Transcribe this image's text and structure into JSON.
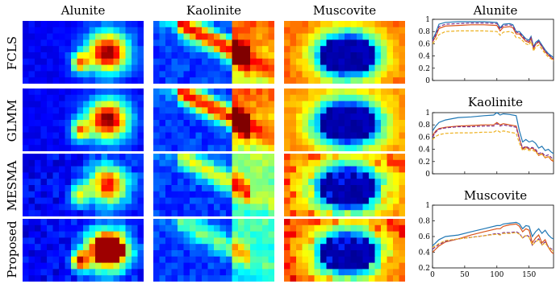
{
  "column_titles": [
    "Alunite",
    "Kaolinite",
    "Muscovite"
  ],
  "row_labels": [
    "FCLS",
    "GLMM",
    "MESMA",
    "Proposed"
  ],
  "colormap": "jet",
  "colors": {
    "blue_series": "#1f77b4",
    "red_series": "#d95319",
    "yellow_series": "#edb120",
    "purple_series": "#7e2f8e"
  },
  "chart_data": [
    {
      "type": "line",
      "title": "Alunite",
      "xlim": [
        0,
        188
      ],
      "ylim": [
        0,
        1
      ],
      "xticks": [
        0,
        50,
        100,
        150
      ],
      "yticks": [
        0,
        0.2,
        0.4,
        0.6,
        0.8,
        1
      ],
      "xtick_labels_visible": false,
      "x": [
        0,
        5,
        10,
        20,
        40,
        60,
        80,
        100,
        105,
        110,
        120,
        125,
        130,
        135,
        140,
        145,
        150,
        153,
        157,
        160,
        165,
        170,
        175,
        180,
        185,
        188
      ],
      "series": [
        {
          "color": "#1f77b4",
          "style": "solid",
          "values": [
            0.66,
            0.78,
            0.92,
            0.95,
            0.96,
            0.96,
            0.96,
            0.95,
            0.86,
            0.92,
            0.93,
            0.91,
            0.8,
            0.8,
            0.74,
            0.68,
            0.66,
            0.72,
            0.55,
            0.62,
            0.66,
            0.58,
            0.5,
            0.44,
            0.4,
            0.37
          ]
        },
        {
          "color": "#d95319",
          "style": "solid",
          "values": [
            0.63,
            0.72,
            0.85,
            0.89,
            0.9,
            0.91,
            0.91,
            0.9,
            0.81,
            0.87,
            0.88,
            0.86,
            0.76,
            0.76,
            0.7,
            0.64,
            0.62,
            0.69,
            0.52,
            0.59,
            0.63,
            0.55,
            0.47,
            0.41,
            0.37,
            0.34
          ]
        },
        {
          "color": "#7e2f8e",
          "style": "dashed",
          "values": [
            0.64,
            0.75,
            0.88,
            0.92,
            0.93,
            0.94,
            0.94,
            0.93,
            0.84,
            0.9,
            0.91,
            0.89,
            0.79,
            0.78,
            0.72,
            0.66,
            0.64,
            0.7,
            0.53,
            0.6,
            0.64,
            0.56,
            0.48,
            0.42,
            0.38,
            0.35
          ]
        },
        {
          "color": "#edb120",
          "style": "dashed",
          "values": [
            0.6,
            0.66,
            0.75,
            0.8,
            0.81,
            0.81,
            0.81,
            0.8,
            0.74,
            0.79,
            0.8,
            0.78,
            0.7,
            0.7,
            0.65,
            0.6,
            0.58,
            0.64,
            0.48,
            0.55,
            0.58,
            0.51,
            0.44,
            0.38,
            0.35,
            0.32
          ]
        }
      ]
    },
    {
      "type": "line",
      "title": "Kaolinite",
      "xlim": [
        0,
        188
      ],
      "ylim": [
        0,
        1
      ],
      "xticks": [
        0,
        50,
        100,
        150
      ],
      "yticks": [
        0,
        0.2,
        0.4,
        0.6,
        0.8,
        1
      ],
      "xtick_labels_visible": false,
      "x": [
        0,
        5,
        10,
        20,
        40,
        60,
        80,
        95,
        100,
        105,
        110,
        120,
        130,
        135,
        140,
        145,
        150,
        155,
        160,
        165,
        170,
        175,
        180,
        185,
        188
      ],
      "series": [
        {
          "color": "#1f77b4",
          "style": "solid",
          "values": [
            0.7,
            0.78,
            0.84,
            0.88,
            0.92,
            0.93,
            0.95,
            0.96,
            1.0,
            0.96,
            0.98,
            0.97,
            0.95,
            0.7,
            0.52,
            0.56,
            0.52,
            0.54,
            0.5,
            0.42,
            0.45,
            0.38,
            0.4,
            0.35,
            0.33
          ]
        },
        {
          "color": "#d95319",
          "style": "solid",
          "values": [
            0.62,
            0.7,
            0.74,
            0.76,
            0.78,
            0.79,
            0.8,
            0.8,
            0.84,
            0.8,
            0.82,
            0.8,
            0.78,
            0.58,
            0.4,
            0.44,
            0.4,
            0.42,
            0.38,
            0.3,
            0.33,
            0.26,
            0.28,
            0.22,
            0.2
          ]
        },
        {
          "color": "#7e2f8e",
          "style": "dashed",
          "values": [
            0.6,
            0.68,
            0.73,
            0.75,
            0.77,
            0.77,
            0.78,
            0.78,
            0.82,
            0.78,
            0.8,
            0.78,
            0.76,
            0.57,
            0.42,
            0.45,
            0.42,
            0.43,
            0.4,
            0.33,
            0.35,
            0.29,
            0.31,
            0.26,
            0.24
          ]
        },
        {
          "color": "#edb120",
          "style": "dashed",
          "values": [
            0.56,
            0.61,
            0.64,
            0.66,
            0.67,
            0.67,
            0.68,
            0.68,
            0.71,
            0.68,
            0.7,
            0.68,
            0.66,
            0.5,
            0.38,
            0.41,
            0.38,
            0.39,
            0.36,
            0.3,
            0.32,
            0.27,
            0.28,
            0.24,
            0.22
          ]
        }
      ]
    },
    {
      "type": "line",
      "title": "Muscovite",
      "xlim": [
        0,
        188
      ],
      "ylim": [
        0.2,
        1
      ],
      "xticks": [
        0,
        50,
        100,
        150
      ],
      "yticks": [
        0.2,
        0.4,
        0.6,
        0.8,
        1
      ],
      "xtick_labels_visible": true,
      "x": [
        0,
        10,
        20,
        40,
        60,
        80,
        100,
        105,
        110,
        120,
        130,
        135,
        140,
        145,
        150,
        155,
        160,
        165,
        170,
        175,
        180,
        185,
        188
      ],
      "series": [
        {
          "color": "#1f77b4",
          "style": "solid",
          "values": [
            0.48,
            0.56,
            0.6,
            0.62,
            0.66,
            0.7,
            0.74,
            0.74,
            0.76,
            0.77,
            0.78,
            0.76,
            0.7,
            0.74,
            0.73,
            0.6,
            0.66,
            0.7,
            0.64,
            0.68,
            0.62,
            0.58,
            0.57
          ]
        },
        {
          "color": "#d95319",
          "style": "solid",
          "values": [
            0.4,
            0.48,
            0.53,
            0.57,
            0.62,
            0.66,
            0.7,
            0.7,
            0.73,
            0.75,
            0.76,
            0.73,
            0.66,
            0.7,
            0.68,
            0.52,
            0.58,
            0.62,
            0.52,
            0.56,
            0.46,
            0.4,
            0.38
          ]
        },
        {
          "color": "#7e2f8e",
          "style": "dashed",
          "values": [
            0.44,
            0.5,
            0.54,
            0.57,
            0.59,
            0.61,
            0.64,
            0.63,
            0.65,
            0.65,
            0.66,
            0.64,
            0.58,
            0.62,
            0.6,
            0.49,
            0.54,
            0.57,
            0.5,
            0.53,
            0.47,
            0.44,
            0.42
          ]
        },
        {
          "color": "#edb120",
          "style": "dashed",
          "values": [
            0.46,
            0.51,
            0.55,
            0.57,
            0.59,
            0.61,
            0.63,
            0.62,
            0.64,
            0.64,
            0.65,
            0.63,
            0.58,
            0.61,
            0.59,
            0.49,
            0.53,
            0.56,
            0.49,
            0.52,
            0.46,
            0.43,
            0.41
          ]
        }
      ]
    }
  ]
}
